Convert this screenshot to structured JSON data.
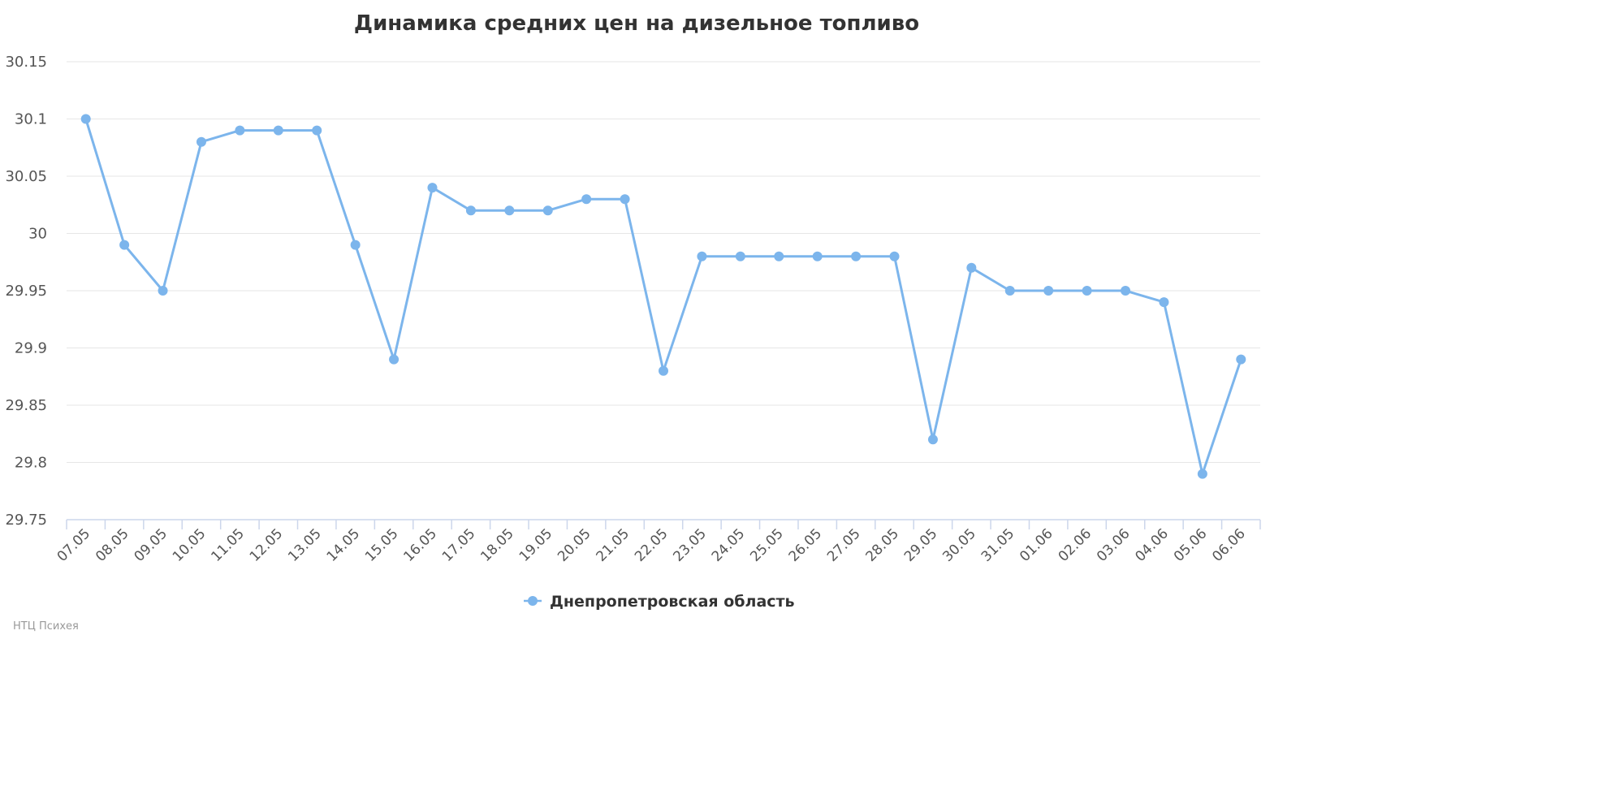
{
  "chart_data": {
    "type": "line",
    "title": "Динамика средних цен на дизельное топливо",
    "xlabel": "",
    "ylabel": "",
    "categories": [
      "07.05",
      "08.05",
      "09.05",
      "10.05",
      "11.05",
      "12.05",
      "13.05",
      "14.05",
      "15.05",
      "16.05",
      "17.05",
      "18.05",
      "19.05",
      "20.05",
      "21.05",
      "22.05",
      "23.05",
      "24.05",
      "25.05",
      "26.05",
      "27.05",
      "28.05",
      "29.05",
      "30.05",
      "31.05",
      "01.06",
      "02.06",
      "03.06",
      "04.06",
      "05.06",
      "06.06"
    ],
    "series": [
      {
        "name": "Днепропетровская область",
        "color": "#7cb5ec",
        "values": [
          30.1,
          29.99,
          29.95,
          30.08,
          30.09,
          30.09,
          30.09,
          29.99,
          29.89,
          30.04,
          30.02,
          30.02,
          30.02,
          30.03,
          30.03,
          29.88,
          29.98,
          29.98,
          29.98,
          29.98,
          29.98,
          29.98,
          29.82,
          29.97,
          29.95,
          29.95,
          29.95,
          29.95,
          29.94,
          29.79,
          29.89
        ]
      }
    ],
    "ylim": [
      29.75,
      30.15
    ],
    "yticks": [
      "30.15",
      "30.1",
      "30.05",
      "30",
      "29.95",
      "29.9",
      "29.85",
      "29.8",
      "29.75"
    ],
    "ytick_values": [
      30.15,
      30.1,
      30.05,
      30,
      29.95,
      29.9,
      29.85,
      29.8,
      29.75
    ],
    "grid": true,
    "legend_position": "bottom-center"
  },
  "credit": "НТЦ Психея"
}
